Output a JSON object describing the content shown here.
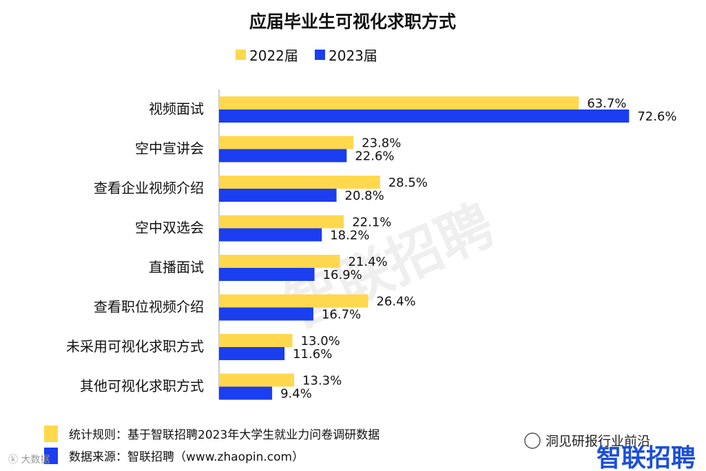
{
  "chart_data": {
    "type": "bar",
    "orientation": "horizontal",
    "title": "应届毕业生可视化求职方式",
    "categories": [
      "视频面试",
      "空中宣讲会",
      "查看企业视频介绍",
      "空中双选会",
      "直播面试",
      "查看职位视频介绍",
      "未采用可视化求职方式",
      "其他可视化求职方式"
    ],
    "series": [
      {
        "name": "2022届",
        "color": "#ffd84d",
        "values": [
          63.7,
          23.8,
          28.5,
          22.1,
          21.4,
          26.4,
          13.0,
          13.3
        ]
      },
      {
        "name": "2023届",
        "color": "#1a3ef0",
        "values": [
          72.6,
          22.6,
          20.8,
          18.2,
          16.9,
          16.7,
          11.6,
          9.4
        ]
      }
    ],
    "value_suffix": "%",
    "xlim": [
      0,
      80
    ],
    "legend": "top-center",
    "grid": false
  },
  "notes": [
    {
      "text": "统计规则：基于智联招聘2023年大学生就业力问卷调研数据",
      "color": "#ffd84d"
    },
    {
      "text": "数据来源：智联招聘（www.zhaopin.com）",
      "color": "#1a3ef0"
    }
  ],
  "watermark": "智联招聘",
  "brand_logo": "智联招聘",
  "account_label": "洞见研报行业前沿"
}
